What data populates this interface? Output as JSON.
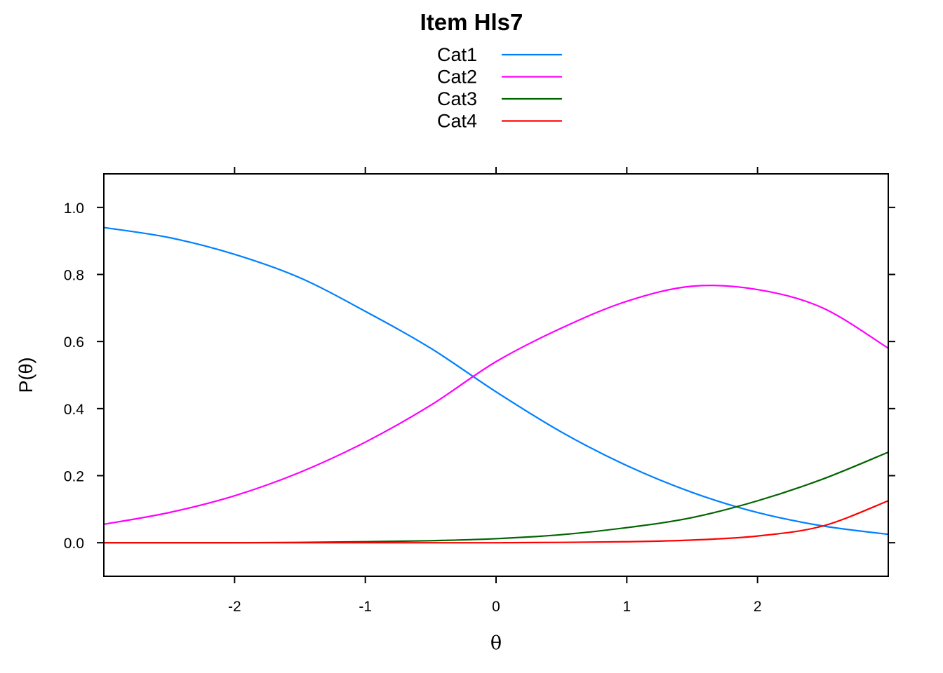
{
  "chart_data": {
    "type": "line",
    "title": "Item Hls7",
    "xlabel": "θ",
    "ylabel": "P(θ)",
    "xlim": [
      -3,
      3
    ],
    "ylim": [
      -0.1,
      1.1
    ],
    "xticks": [
      -2,
      -1,
      0,
      1,
      2
    ],
    "xtick_labels": [
      "-2",
      "-1",
      "0",
      "1",
      "2"
    ],
    "yticks": [
      0.0,
      0.2,
      0.4,
      0.6,
      0.8,
      1.0
    ],
    "ytick_labels": [
      "0.0",
      "0.2",
      "0.4",
      "0.6",
      "0.8",
      "1.0"
    ],
    "legend_position": "top-center",
    "grid": false,
    "x": [
      -3.0,
      -2.5,
      -2.0,
      -1.5,
      -1.0,
      -0.5,
      0.0,
      0.5,
      1.0,
      1.5,
      2.0,
      2.5,
      3.0
    ],
    "series": [
      {
        "name": "Cat1",
        "color": "#0080ff",
        "values": [
          0.94,
          0.91,
          0.86,
          0.79,
          0.69,
          0.58,
          0.45,
          0.33,
          0.23,
          0.15,
          0.09,
          0.05,
          0.025
        ]
      },
      {
        "name": "Cat2",
        "color": "#ff00ff",
        "values": [
          0.055,
          0.09,
          0.14,
          0.21,
          0.3,
          0.41,
          0.54,
          0.64,
          0.72,
          0.765,
          0.755,
          0.7,
          0.58
        ]
      },
      {
        "name": "Cat3",
        "color": "#006400",
        "values": [
          0.0,
          0.0,
          0.0,
          0.001,
          0.003,
          0.006,
          0.012,
          0.024,
          0.045,
          0.075,
          0.125,
          0.19,
          0.27
        ]
      },
      {
        "name": "Cat4",
        "color": "#ff0000",
        "values": [
          0.0,
          0.0,
          0.0,
          0.0,
          0.0,
          0.0,
          0.0,
          0.001,
          0.003,
          0.008,
          0.02,
          0.05,
          0.125
        ]
      }
    ]
  }
}
